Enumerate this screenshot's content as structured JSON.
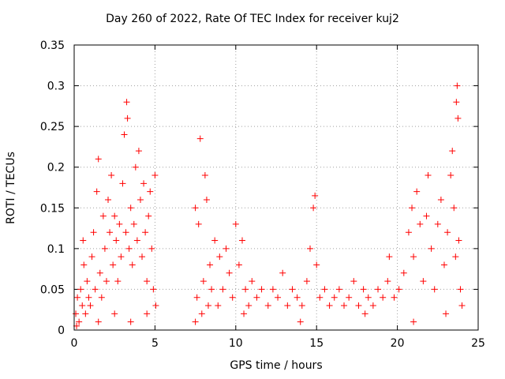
{
  "chart_data": {
    "type": "scatter",
    "title": "Day 260 of 2022, Rate Of TEC Index for receiver kuj2",
    "xlabel": "GPS time / hours",
    "ylabel": "ROTI / TECUs",
    "xlim": [
      0,
      25
    ],
    "ylim": [
      0,
      0.35
    ],
    "xticks": [
      "0",
      "5",
      "10",
      "15",
      "20",
      "25"
    ],
    "yticks": [
      "0",
      "0.05",
      "0.1",
      "0.15",
      "0.2",
      "0.25",
      "0.3",
      "0.35"
    ],
    "grid": true,
    "marker": "+",
    "color": "#ff0000",
    "series": [
      {
        "points": [
          [
            0.1,
            0.02
          ],
          [
            0.2,
            0.04
          ],
          [
            0.3,
            0.01
          ],
          [
            0.4,
            0.05
          ],
          [
            0.5,
            0.03
          ],
          [
            0.55,
            0.11
          ],
          [
            0.6,
            0.08
          ],
          [
            0.7,
            0.02
          ],
          [
            0.8,
            0.06
          ],
          [
            0.9,
            0.04
          ],
          [
            1.0,
            0.03
          ],
          [
            1.1,
            0.09
          ],
          [
            1.2,
            0.12
          ],
          [
            1.3,
            0.05
          ],
          [
            1.4,
            0.17
          ],
          [
            1.5,
            0.21
          ],
          [
            1.6,
            0.07
          ],
          [
            1.7,
            0.04
          ],
          [
            1.8,
            0.14
          ],
          [
            1.9,
            0.1
          ],
          [
            2.0,
            0.06
          ],
          [
            2.1,
            0.16
          ],
          [
            2.2,
            0.12
          ],
          [
            2.3,
            0.19
          ],
          [
            2.4,
            0.08
          ],
          [
            2.5,
            0.14
          ],
          [
            2.6,
            0.11
          ],
          [
            2.7,
            0.06
          ],
          [
            2.8,
            0.13
          ],
          [
            2.9,
            0.09
          ],
          [
            3.0,
            0.18
          ],
          [
            3.1,
            0.24
          ],
          [
            3.2,
            0.12
          ],
          [
            3.25,
            0.28
          ],
          [
            3.3,
            0.26
          ],
          [
            3.4,
            0.1
          ],
          [
            3.5,
            0.15
          ],
          [
            3.6,
            0.08
          ],
          [
            3.7,
            0.13
          ],
          [
            3.8,
            0.2
          ],
          [
            3.9,
            0.11
          ],
          [
            4.0,
            0.22
          ],
          [
            4.1,
            0.16
          ],
          [
            4.2,
            0.09
          ],
          [
            4.3,
            0.18
          ],
          [
            4.4,
            0.12
          ],
          [
            4.5,
            0.06
          ],
          [
            4.6,
            0.14
          ],
          [
            4.7,
            0.17
          ],
          [
            4.8,
            0.1
          ],
          [
            4.9,
            0.05
          ],
          [
            5.0,
            0.19
          ],
          [
            5.05,
            0.03
          ],
          [
            0.15,
            0.005
          ],
          [
            1.5,
            0.01
          ],
          [
            2.5,
            0.02
          ],
          [
            3.5,
            0.01
          ],
          [
            4.5,
            0.02
          ],
          [
            7.5,
            0.15
          ],
          [
            7.6,
            0.04
          ],
          [
            7.7,
            0.13
          ],
          [
            7.8,
            0.235
          ],
          [
            7.9,
            0.02
          ],
          [
            8.0,
            0.06
          ],
          [
            8.1,
            0.19
          ],
          [
            8.2,
            0.16
          ],
          [
            8.3,
            0.03
          ],
          [
            8.4,
            0.08
          ],
          [
            8.5,
            0.05
          ],
          [
            8.7,
            0.11
          ],
          [
            8.9,
            0.03
          ],
          [
            9.0,
            0.09
          ],
          [
            9.2,
            0.05
          ],
          [
            9.4,
            0.1
          ],
          [
            9.6,
            0.07
          ],
          [
            9.8,
            0.04
          ],
          [
            10.0,
            0.13
          ],
          [
            10.2,
            0.08
          ],
          [
            10.4,
            0.11
          ],
          [
            10.6,
            0.05
          ],
          [
            10.8,
            0.03
          ],
          [
            11.0,
            0.06
          ],
          [
            11.3,
            0.04
          ],
          [
            11.6,
            0.05
          ],
          [
            12.0,
            0.03
          ],
          [
            12.3,
            0.05
          ],
          [
            12.6,
            0.04
          ],
          [
            12.9,
            0.07
          ],
          [
            13.2,
            0.03
          ],
          [
            13.5,
            0.05
          ],
          [
            13.8,
            0.04
          ],
          [
            14.1,
            0.03
          ],
          [
            14.4,
            0.06
          ],
          [
            14.6,
            0.1
          ],
          [
            14.8,
            0.15
          ],
          [
            14.9,
            0.165
          ],
          [
            15.0,
            0.08
          ],
          [
            15.2,
            0.04
          ],
          [
            15.5,
            0.05
          ],
          [
            15.8,
            0.03
          ],
          [
            16.1,
            0.04
          ],
          [
            16.4,
            0.05
          ],
          [
            16.7,
            0.03
          ],
          [
            17.0,
            0.04
          ],
          [
            17.3,
            0.06
          ],
          [
            17.6,
            0.03
          ],
          [
            17.9,
            0.05
          ],
          [
            18.2,
            0.04
          ],
          [
            18.5,
            0.03
          ],
          [
            18.8,
            0.05
          ],
          [
            19.1,
            0.04
          ],
          [
            19.4,
            0.06
          ],
          [
            19.5,
            0.09
          ],
          [
            19.8,
            0.04
          ],
          [
            20.1,
            0.05
          ],
          [
            20.4,
            0.07
          ],
          [
            20.7,
            0.12
          ],
          [
            20.9,
            0.15
          ],
          [
            21.0,
            0.09
          ],
          [
            21.2,
            0.17
          ],
          [
            21.4,
            0.13
          ],
          [
            21.6,
            0.06
          ],
          [
            21.8,
            0.14
          ],
          [
            21.9,
            0.19
          ],
          [
            22.1,
            0.1
          ],
          [
            22.3,
            0.05
          ],
          [
            22.5,
            0.13
          ],
          [
            22.7,
            0.16
          ],
          [
            22.9,
            0.08
          ],
          [
            23.1,
            0.12
          ],
          [
            23.3,
            0.19
          ],
          [
            23.4,
            0.22
          ],
          [
            23.5,
            0.15
          ],
          [
            23.6,
            0.09
          ],
          [
            23.65,
            0.28
          ],
          [
            23.7,
            0.3
          ],
          [
            23.75,
            0.26
          ],
          [
            23.8,
            0.11
          ],
          [
            23.9,
            0.05
          ],
          [
            24.0,
            0.03
          ],
          [
            7.5,
            0.01
          ],
          [
            10.5,
            0.02
          ],
          [
            14.0,
            0.01
          ],
          [
            18.0,
            0.02
          ],
          [
            21.0,
            0.01
          ],
          [
            23.0,
            0.02
          ]
        ]
      }
    ]
  }
}
